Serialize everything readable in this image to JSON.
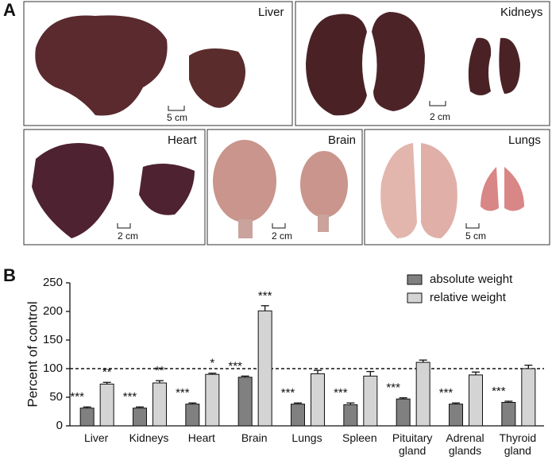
{
  "panels": {
    "a": "A",
    "b": "B"
  },
  "photos": [
    {
      "label": "Liver",
      "scale": "5 cm"
    },
    {
      "label": "Kidneys",
      "scale": "2 cm"
    },
    {
      "label": "Heart",
      "scale": "2 cm"
    },
    {
      "label": "Brain",
      "scale": "2 cm"
    },
    {
      "label": "Lungs",
      "scale": "5 cm"
    }
  ],
  "chart_data": {
    "type": "bar",
    "ylabel": "Percent of control",
    "categories": [
      "Liver",
      "Kidneys",
      "Heart",
      "Brain",
      "Lungs",
      "Spleen",
      "Pituitary gland",
      "Adrenal glands",
      "Thyroid gland"
    ],
    "series": [
      {
        "name": "absolute weight",
        "color": "#808080",
        "values": [
          31,
          31,
          38,
          85,
          38,
          37,
          47,
          38,
          41
        ],
        "errors": [
          2,
          2,
          2,
          2,
          2,
          3,
          2,
          2,
          2
        ],
        "annotations": [
          "***",
          "***",
          "***",
          "***",
          "***",
          "***",
          "***",
          "***",
          "***"
        ]
      },
      {
        "name": "relative weight",
        "color": "#d4d4d4",
        "values": [
          73,
          75,
          90,
          201,
          91,
          87,
          111,
          89,
          100
        ],
        "errors": [
          3,
          4,
          2,
          9,
          6,
          8,
          4,
          5,
          6
        ],
        "annotations": [
          "**",
          "**",
          "*",
          "***",
          null,
          null,
          null,
          null,
          null
        ]
      }
    ],
    "reference_line": 100,
    "ylim": [
      0,
      250
    ],
    "yticks": [
      0,
      50,
      100,
      150,
      200,
      250
    ],
    "legend": "top-right"
  }
}
